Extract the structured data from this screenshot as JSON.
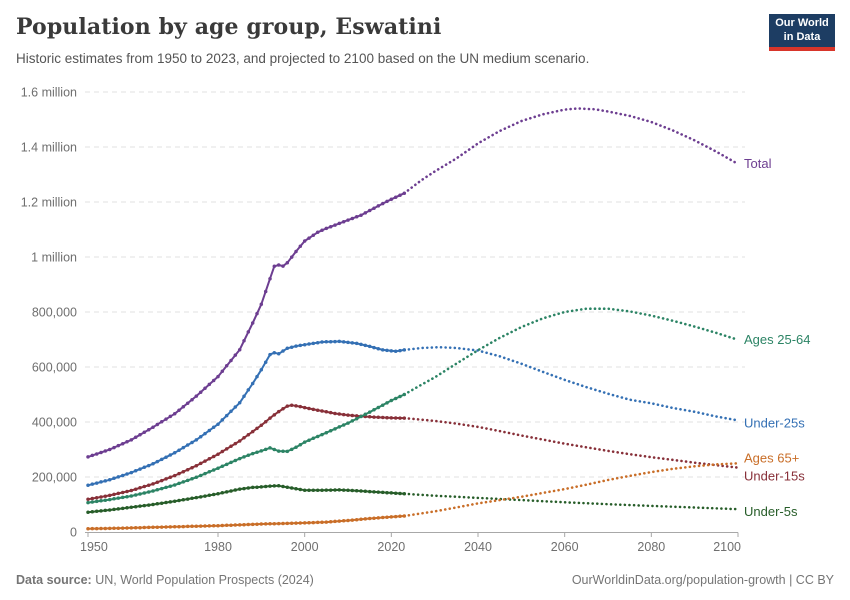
{
  "header": {
    "title": "Population by age group, Eswatini",
    "subtitle": "Historic estimates from 1950 to 2023, and projected to 2100 based on the UN medium scenario.",
    "logo": {
      "line1": "Our World",
      "line2": "in Data",
      "bg_color": "#1d3d63",
      "stripe_color": "#d8352a"
    }
  },
  "footer": {
    "source_label": "Data source:",
    "source_text": " UN, World Population Prospects (2024)",
    "credit": "OurWorldinData.org/population-growth | CC BY"
  },
  "chart_data": {
    "type": "line",
    "title": "Population by age group, Eswatini",
    "subtitle": "Historic estimates from 1950 to 2023, and projected to 2100 based on the UN medium scenario.",
    "xlim": [
      1950,
      2100
    ],
    "ylim": [
      0,
      1600000
    ],
    "grid": true,
    "legend_position": "line-end-labels",
    "projection_start": 2023,
    "x_ticks": [
      1950,
      1980,
      2000,
      2020,
      2040,
      2060,
      2080,
      2100
    ],
    "y_ticks": [
      {
        "value": 0,
        "label": "0"
      },
      {
        "value": 200000,
        "label": "200,000"
      },
      {
        "value": 400000,
        "label": "400,000"
      },
      {
        "value": 600000,
        "label": "600,000"
      },
      {
        "value": 800000,
        "label": "800,000"
      },
      {
        "value": 1000000,
        "label": "1 million"
      },
      {
        "value": 1200000,
        "label": "1.2 million"
      },
      {
        "value": 1400000,
        "label": "1.4 million"
      },
      {
        "value": 1600000,
        "label": "1.6 million"
      }
    ],
    "series": [
      {
        "name": "Total",
        "color": "#6D3E91",
        "label_dy": 0,
        "historic": [
          [
            1950,
            273000
          ],
          [
            1955,
            300000
          ],
          [
            1960,
            335000
          ],
          [
            1965,
            381000
          ],
          [
            1970,
            430000
          ],
          [
            1975,
            494000
          ],
          [
            1980,
            565000
          ],
          [
            1985,
            663000
          ],
          [
            1988,
            760000
          ],
          [
            1990,
            828000
          ],
          [
            1992,
            921000
          ],
          [
            1993,
            966000
          ],
          [
            1994,
            971000
          ],
          [
            1995,
            967000
          ],
          [
            1996,
            979000
          ],
          [
            1998,
            1020000
          ],
          [
            2000,
            1058000
          ],
          [
            2003,
            1090000
          ],
          [
            2005,
            1104000
          ],
          [
            2008,
            1122000
          ],
          [
            2010,
            1134000
          ],
          [
            2013,
            1152000
          ],
          [
            2015,
            1169000
          ],
          [
            2018,
            1194000
          ],
          [
            2020,
            1210000
          ],
          [
            2023,
            1232000
          ]
        ],
        "projected": [
          [
            2023,
            1232000
          ],
          [
            2027,
            1280000
          ],
          [
            2030,
            1311000
          ],
          [
            2035,
            1358000
          ],
          [
            2040,
            1413000
          ],
          [
            2045,
            1458000
          ],
          [
            2050,
            1494000
          ],
          [
            2055,
            1519000
          ],
          [
            2060,
            1536000
          ],
          [
            2063,
            1540000
          ],
          [
            2067,
            1537000
          ],
          [
            2070,
            1529000
          ],
          [
            2075,
            1513000
          ],
          [
            2080,
            1491000
          ],
          [
            2085,
            1460000
          ],
          [
            2090,
            1424000
          ],
          [
            2095,
            1383000
          ],
          [
            2100,
            1338000
          ]
        ]
      },
      {
        "name": "Ages 25-64",
        "color": "#2C8465",
        "label_dy": 0,
        "historic": [
          [
            1950,
            107000
          ],
          [
            1955,
            118000
          ],
          [
            1960,
            131000
          ],
          [
            1965,
            149000
          ],
          [
            1970,
            171000
          ],
          [
            1975,
            199000
          ],
          [
            1980,
            232000
          ],
          [
            1985,
            267000
          ],
          [
            1988,
            285000
          ],
          [
            1990,
            295000
          ],
          [
            1992,
            306000
          ],
          [
            1994,
            294000
          ],
          [
            1996,
            293000
          ],
          [
            1998,
            308000
          ],
          [
            2000,
            327000
          ],
          [
            2005,
            361000
          ],
          [
            2010,
            396000
          ],
          [
            2015,
            436000
          ],
          [
            2020,
            478000
          ],
          [
            2023,
            500000
          ]
        ],
        "projected": [
          [
            2023,
            500000
          ],
          [
            2027,
            536000
          ],
          [
            2030,
            562000
          ],
          [
            2035,
            612000
          ],
          [
            2040,
            661000
          ],
          [
            2045,
            706000
          ],
          [
            2050,
            745000
          ],
          [
            2055,
            777000
          ],
          [
            2060,
            800000
          ],
          [
            2065,
            812000
          ],
          [
            2070,
            812000
          ],
          [
            2075,
            802000
          ],
          [
            2080,
            787000
          ],
          [
            2085,
            768000
          ],
          [
            2090,
            747000
          ],
          [
            2095,
            724000
          ],
          [
            2100,
            699000
          ]
        ]
      },
      {
        "name": "Under-25s",
        "color": "#3470B4",
        "label_dy": 3,
        "historic": [
          [
            1950,
            170000
          ],
          [
            1955,
            190000
          ],
          [
            1960,
            216000
          ],
          [
            1965,
            248000
          ],
          [
            1970,
            288000
          ],
          [
            1975,
            335000
          ],
          [
            1980,
            392000
          ],
          [
            1985,
            470000
          ],
          [
            1988,
            540000
          ],
          [
            1990,
            590000
          ],
          [
            1992,
            645000
          ],
          [
            1993,
            652000
          ],
          [
            1994,
            648000
          ],
          [
            1996,
            668000
          ],
          [
            1998,
            676000
          ],
          [
            2000,
            681000
          ],
          [
            2004,
            691000
          ],
          [
            2008,
            693000
          ],
          [
            2012,
            686000
          ],
          [
            2015,
            675000
          ],
          [
            2018,
            662000
          ],
          [
            2021,
            657000
          ],
          [
            2023,
            662000
          ]
        ],
        "projected": [
          [
            2023,
            662000
          ],
          [
            2027,
            669000
          ],
          [
            2031,
            672000
          ],
          [
            2035,
            669000
          ],
          [
            2040,
            660000
          ],
          [
            2045,
            639000
          ],
          [
            2050,
            612000
          ],
          [
            2055,
            582000
          ],
          [
            2060,
            553000
          ],
          [
            2065,
            527000
          ],
          [
            2070,
            503000
          ],
          [
            2075,
            481000
          ],
          [
            2080,
            468000
          ],
          [
            2085,
            451000
          ],
          [
            2090,
            437000
          ],
          [
            2095,
            420000
          ],
          [
            2100,
            406000
          ]
        ]
      },
      {
        "name": "Ages 65+",
        "color": "#C96E28",
        "label_dy": -5,
        "historic": [
          [
            1950,
            12000
          ],
          [
            1955,
            13000
          ],
          [
            1960,
            15000
          ],
          [
            1965,
            17000
          ],
          [
            1970,
            19000
          ],
          [
            1975,
            21000
          ],
          [
            1980,
            23000
          ],
          [
            1985,
            26000
          ],
          [
            1990,
            29000
          ],
          [
            1995,
            31000
          ],
          [
            2000,
            33000
          ],
          [
            2005,
            36000
          ],
          [
            2010,
            42000
          ],
          [
            2015,
            49000
          ],
          [
            2020,
            55000
          ],
          [
            2023,
            58000
          ]
        ],
        "projected": [
          [
            2023,
            58000
          ],
          [
            2030,
            75000
          ],
          [
            2035,
            89000
          ],
          [
            2040,
            104000
          ],
          [
            2045,
            116000
          ],
          [
            2050,
            128000
          ],
          [
            2055,
            142000
          ],
          [
            2060,
            156000
          ],
          [
            2065,
            172000
          ],
          [
            2070,
            189000
          ],
          [
            2075,
            204000
          ],
          [
            2080,
            218000
          ],
          [
            2085,
            230000
          ],
          [
            2090,
            239000
          ],
          [
            2095,
            246000
          ],
          [
            2100,
            250000
          ]
        ]
      },
      {
        "name": "Under-15s",
        "color": "#883039",
        "label_dy": 9,
        "historic": [
          [
            1950,
            119000
          ],
          [
            1955,
            133000
          ],
          [
            1960,
            151000
          ],
          [
            1965,
            175000
          ],
          [
            1970,
            205000
          ],
          [
            1975,
            241000
          ],
          [
            1980,
            283000
          ],
          [
            1985,
            331000
          ],
          [
            1990,
            388000
          ],
          [
            1992,
            414000
          ],
          [
            1994,
            438000
          ],
          [
            1996,
            458000
          ],
          [
            1997,
            461000
          ],
          [
            1999,
            456000
          ],
          [
            2001,
            449000
          ],
          [
            2004,
            440000
          ],
          [
            2007,
            431000
          ],
          [
            2010,
            425000
          ],
          [
            2013,
            421000
          ],
          [
            2016,
            418000
          ],
          [
            2020,
            415000
          ],
          [
            2023,
            414000
          ]
        ],
        "projected": [
          [
            2023,
            414000
          ],
          [
            2030,
            404000
          ],
          [
            2035,
            394000
          ],
          [
            2040,
            382000
          ],
          [
            2045,
            367000
          ],
          [
            2050,
            351000
          ],
          [
            2055,
            336000
          ],
          [
            2060,
            321000
          ],
          [
            2065,
            308000
          ],
          [
            2070,
            295000
          ],
          [
            2075,
            283000
          ],
          [
            2080,
            272000
          ],
          [
            2085,
            262000
          ],
          [
            2090,
            252000
          ],
          [
            2095,
            243000
          ],
          [
            2100,
            234000
          ]
        ]
      },
      {
        "name": "Under-5s",
        "color": "#275D29",
        "label_dy": 3,
        "historic": [
          [
            1950,
            72000
          ],
          [
            1955,
            80000
          ],
          [
            1960,
            90000
          ],
          [
            1965,
            100000
          ],
          [
            1970,
            112000
          ],
          [
            1975,
            125000
          ],
          [
            1980,
            139000
          ],
          [
            1985,
            156000
          ],
          [
            1988,
            162000
          ],
          [
            1990,
            164000
          ],
          [
            1992,
            167000
          ],
          [
            1994,
            168000
          ],
          [
            1997,
            160000
          ],
          [
            2000,
            152000
          ],
          [
            2004,
            152000
          ],
          [
            2008,
            153000
          ],
          [
            2012,
            150000
          ],
          [
            2016,
            146000
          ],
          [
            2020,
            142000
          ],
          [
            2023,
            139000
          ]
        ],
        "projected": [
          [
            2023,
            139000
          ],
          [
            2030,
            132000
          ],
          [
            2040,
            124000
          ],
          [
            2050,
            116000
          ],
          [
            2060,
            108000
          ],
          [
            2070,
            101000
          ],
          [
            2080,
            95000
          ],
          [
            2090,
            89000
          ],
          [
            2100,
            83000
          ]
        ]
      }
    ]
  }
}
